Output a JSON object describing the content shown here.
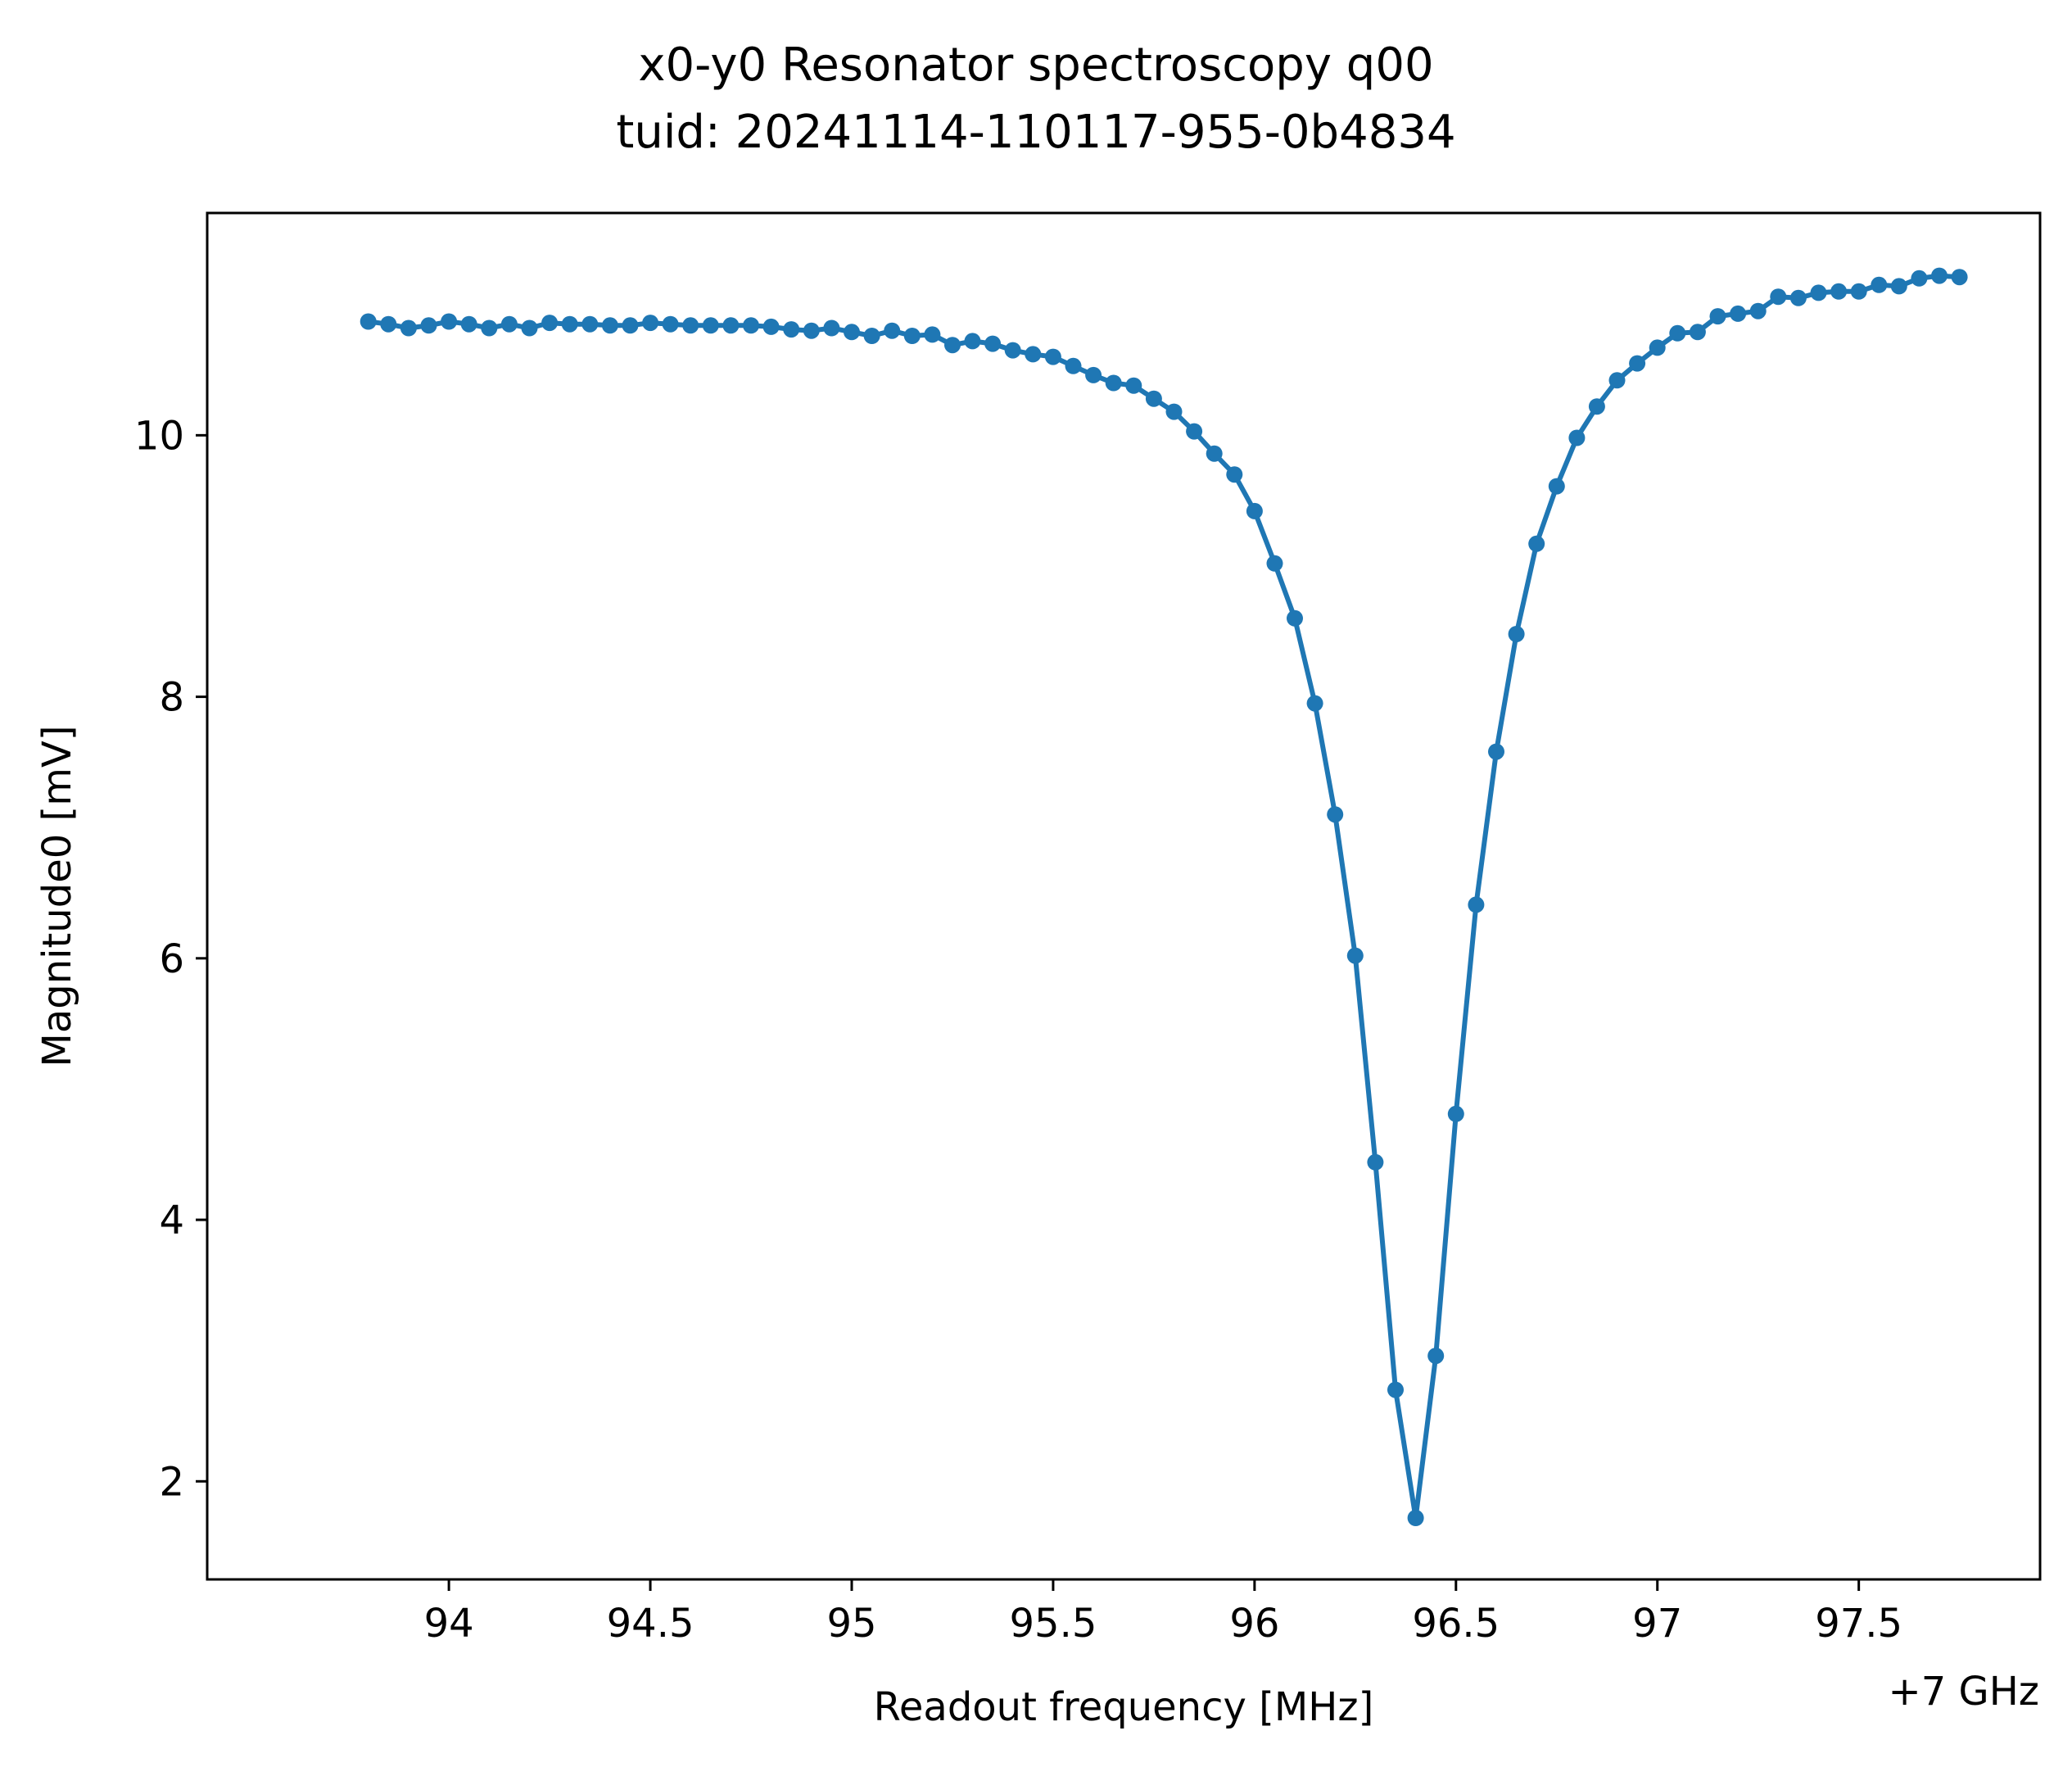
{
  "chart_data": {
    "type": "line",
    "title": "x0-y0 Resonator spectroscopy q00",
    "subtitle": "tuid: 20241114-110117-955-0b4834",
    "xlabel": "Readout frequency [MHz]",
    "ylabel": "Magnitude0 [mV]",
    "x_offset_label": "+7 GHz",
    "xlim": [
      93.4,
      97.95
    ],
    "ylim": [
      1.25,
      11.7
    ],
    "x_ticks": [
      94,
      94.5,
      95,
      95.5,
      96,
      96.5,
      97,
      97.5
    ],
    "x_tick_labels": [
      "94",
      "94.5",
      "95",
      "95.5",
      "96",
      "96.5",
      "97",
      "97.5"
    ],
    "y_ticks": [
      2,
      4,
      6,
      8,
      10
    ],
    "y_tick_labels": [
      "2",
      "4",
      "6",
      "8",
      "10"
    ],
    "grid": false,
    "colors": {
      "series": "#1f77b4"
    },
    "series": [
      {
        "x": [
          93.8,
          93.85,
          93.9,
          93.95,
          94.0,
          94.05,
          94.1,
          94.15,
          94.2,
          94.25,
          94.3,
          94.35,
          94.4,
          94.45,
          94.5,
          94.55,
          94.6,
          94.65,
          94.7,
          94.75,
          94.8,
          94.85,
          94.9,
          94.95,
          95.0,
          95.05,
          95.1,
          95.15,
          95.2,
          95.25,
          95.3,
          95.35,
          95.4,
          95.45,
          95.5,
          95.55,
          95.6,
          95.65,
          95.7,
          95.75,
          95.8,
          95.85,
          95.9,
          95.95,
          96.0,
          96.05,
          96.1,
          96.15,
          96.2,
          96.25,
          96.3,
          96.35,
          96.4,
          96.45,
          96.5,
          96.55,
          96.6,
          96.65,
          96.7,
          96.75,
          96.8,
          96.85,
          96.9,
          96.95,
          97.0,
          97.05,
          97.1,
          97.15,
          97.2,
          97.25,
          97.3,
          97.35,
          97.4,
          97.45,
          97.5,
          97.55,
          97.6,
          97.65,
          97.7,
          97.75
        ],
        "y": [
          10.87,
          10.85,
          10.82,
          10.84,
          10.87,
          10.85,
          10.82,
          10.85,
          10.82,
          10.86,
          10.85,
          10.85,
          10.84,
          10.84,
          10.86,
          10.85,
          10.84,
          10.84,
          10.84,
          10.84,
          10.83,
          10.81,
          10.8,
          10.82,
          10.79,
          10.76,
          10.8,
          10.76,
          10.77,
          10.69,
          10.72,
          10.7,
          10.65,
          10.62,
          10.6,
          10.53,
          10.46,
          10.4,
          10.38,
          10.28,
          10.18,
          10.03,
          9.86,
          9.7,
          9.42,
          9.02,
          8.6,
          7.95,
          7.1,
          6.02,
          4.44,
          2.7,
          1.72,
          2.96,
          4.81,
          6.41,
          7.58,
          8.48,
          9.17,
          9.61,
          9.98,
          10.22,
          10.42,
          10.55,
          10.67,
          10.78,
          10.79,
          10.91,
          10.93,
          10.95,
          11.06,
          11.05,
          11.09,
          11.1,
          11.1,
          11.15,
          11.14,
          11.2,
          11.22,
          11.21
        ]
      }
    ]
  }
}
